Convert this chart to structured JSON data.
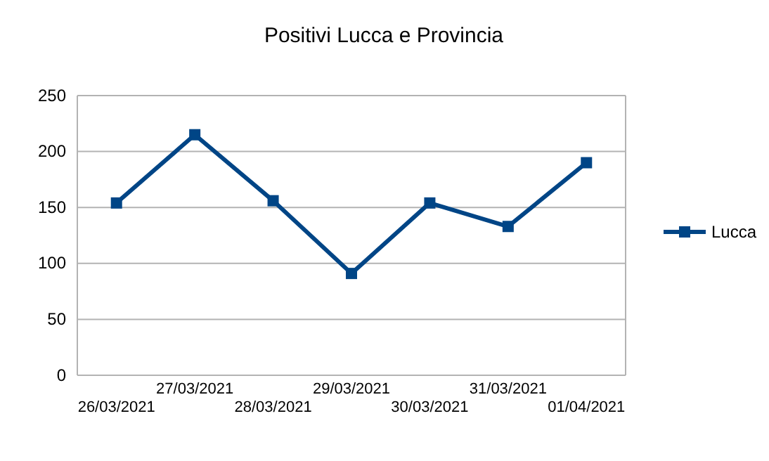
{
  "chart_data": {
    "type": "line",
    "title": "Positivi Lucca e Provincia",
    "categories": [
      "26/03/2021",
      "27/03/2021",
      "28/03/2021",
      "29/03/2021",
      "30/03/2021",
      "31/03/2021",
      "01/04/2021"
    ],
    "series": [
      {
        "name": "Lucca",
        "color": "#004586",
        "values": [
          154,
          215,
          156,
          91,
          154,
          133,
          190
        ]
      }
    ],
    "ylim": [
      0,
      250
    ],
    "yticks": [
      0,
      50,
      100,
      150,
      200,
      250
    ],
    "grid": "y",
    "legend": "right",
    "marker": "square",
    "line_style": "solid"
  }
}
